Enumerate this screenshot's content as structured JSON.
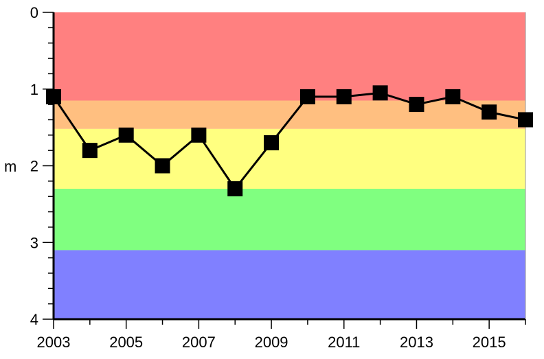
{
  "chart_data": {
    "type": "line",
    "title": "",
    "xlabel": "",
    "ylabel": "m",
    "x": [
      2003,
      2004,
      2005,
      2006,
      2007,
      2008,
      2009,
      2010,
      2011,
      2012,
      2013,
      2014,
      2015,
      2016
    ],
    "series": [
      {
        "values": [
          1.1,
          1.8,
          1.6,
          2.0,
          1.6,
          2.3,
          1.7,
          1.1,
          1.1,
          1.05,
          1.2,
          1.1,
          1.3,
          1.4
        ],
        "color": "#000000",
        "marker": "square"
      }
    ],
    "xlim": [
      2003,
      2016
    ],
    "ylim": [
      0,
      4
    ],
    "y_inverted": true,
    "x_ticks": [
      "2003",
      "2005",
      "2007",
      "2009",
      "2011",
      "2013",
      "2015"
    ],
    "y_ticks": [
      "0",
      "1",
      "2",
      "3",
      "4"
    ],
    "bands": [
      {
        "from": 0,
        "to": 1.15,
        "color": "#ff8080"
      },
      {
        "from": 1.15,
        "to": 1.52,
        "color": "#ffbf80"
      },
      {
        "from": 1.52,
        "to": 2.3,
        "color": "#ffff80"
      },
      {
        "from": 2.3,
        "to": 3.1,
        "color": "#80ff80"
      },
      {
        "from": 3.1,
        "to": 4.0,
        "color": "#8080ff"
      }
    ],
    "grid": false
  }
}
